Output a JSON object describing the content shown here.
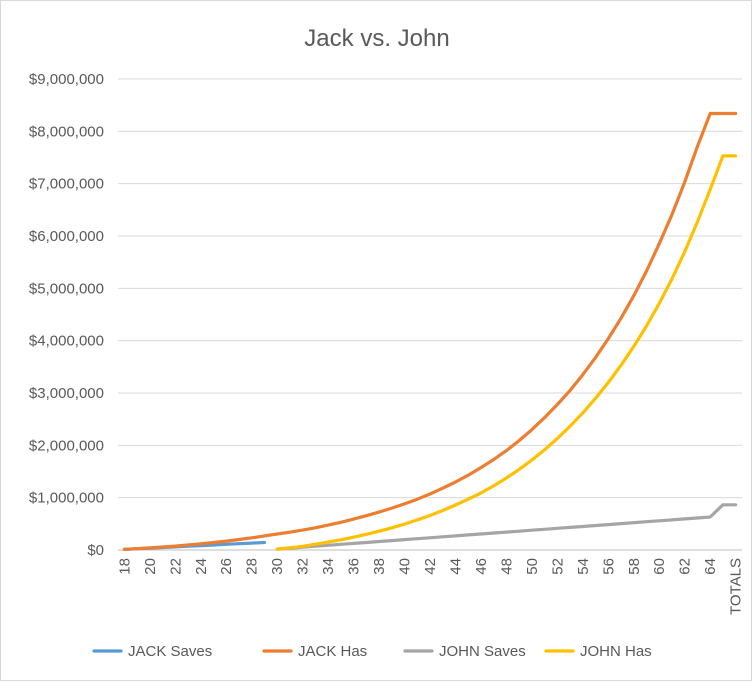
{
  "chart_data": {
    "type": "line",
    "title": "Jack vs. John",
    "xlabel": "",
    "ylabel": "",
    "ylim": [
      0,
      9000000
    ],
    "yticks": [
      "$0",
      "$1,000,000",
      "$2,000,000",
      "$3,000,000",
      "$4,000,000",
      "$5,000,000",
      "$6,000,000",
      "$7,000,000",
      "$8,000,000",
      "$9,000,000"
    ],
    "ytick_values": [
      0,
      1000000,
      2000000,
      3000000,
      4000000,
      5000000,
      6000000,
      7000000,
      8000000,
      9000000
    ],
    "categories": [
      "18",
      "19",
      "20",
      "21",
      "22",
      "23",
      "24",
      "25",
      "26",
      "27",
      "28",
      "29",
      "30",
      "31",
      "32",
      "33",
      "34",
      "35",
      "36",
      "37",
      "38",
      "39",
      "40",
      "41",
      "42",
      "43",
      "44",
      "45",
      "46",
      "47",
      "48",
      "49",
      "50",
      "51",
      "52",
      "53",
      "54",
      "55",
      "56",
      "57",
      "58",
      "59",
      "60",
      "61",
      "62",
      "63",
      "64",
      "65",
      "TOTALS"
    ],
    "xtick_labels": [
      "18",
      "20",
      "22",
      "24",
      "26",
      "28",
      "30",
      "32",
      "34",
      "36",
      "38",
      "40",
      "42",
      "44",
      "46",
      "48",
      "50",
      "52",
      "54",
      "56",
      "58",
      "60",
      "62",
      "64",
      "TOTALS"
    ],
    "grid": true,
    "legend_position": "bottom",
    "series": [
      {
        "name": "JACK Saves",
        "color": "#5B9BD5",
        "values": [
          12000,
          24000,
          36000,
          48000,
          60000,
          72000,
          84000,
          96000,
          108000,
          120000,
          132000,
          144000,
          null,
          null,
          null,
          null,
          null,
          null,
          null,
          null,
          null,
          null,
          null,
          null,
          null,
          null,
          null,
          null,
          null,
          null,
          null,
          null,
          null,
          null,
          null,
          null,
          null,
          null,
          null,
          null,
          null,
          null,
          null,
          null,
          null,
          null,
          null,
          null,
          null
        ]
      },
      {
        "name": "JACK Has",
        "color": "#ED7D31",
        "values": [
          12000,
          25000,
          40000,
          57000,
          75000,
          95000,
          118000,
          143000,
          170000,
          200000,
          233000,
          270000,
          305000,
          340000,
          380000,
          425000,
          475000,
          530000,
          590000,
          655000,
          725000,
          800000,
          880000,
          970000,
          1070000,
          1180000,
          1300000,
          1430000,
          1575000,
          1730000,
          1900000,
          2090000,
          2300000,
          2530000,
          2780000,
          3050000,
          3350000,
          3680000,
          4040000,
          4430000,
          4860000,
          5330000,
          5850000,
          6410000,
          7030000,
          7710000,
          8340000,
          8340000,
          8340000
        ]
      },
      {
        "name": "JOHN Saves",
        "color": "#A5A5A5",
        "values": [
          null,
          null,
          null,
          null,
          null,
          null,
          null,
          null,
          null,
          null,
          null,
          null,
          18000,
          36000,
          54000,
          72000,
          90000,
          108000,
          126000,
          144000,
          162000,
          180000,
          198000,
          216000,
          234000,
          252000,
          270000,
          288000,
          306000,
          324000,
          342000,
          360000,
          378000,
          396000,
          414000,
          432000,
          450000,
          468000,
          486000,
          504000,
          522000,
          540000,
          558000,
          576000,
          594000,
          612000,
          630000,
          864000,
          864000
        ]
      },
      {
        "name": "JOHN Has",
        "color": "#FFC000",
        "values": [
          null,
          null,
          null,
          null,
          null,
          null,
          null,
          null,
          null,
          null,
          null,
          null,
          18000,
          40000,
          70000,
          110000,
          150000,
          195000,
          245000,
          300000,
          360000,
          425000,
          495000,
          575000,
          660000,
          755000,
          860000,
          970000,
          1090000,
          1225000,
          1375000,
          1540000,
          1720000,
          1915000,
          2130000,
          2365000,
          2620000,
          2900000,
          3200000,
          3530000,
          3890000,
          4280000,
          4710000,
          5180000,
          5700000,
          6270000,
          6890000,
          7530000,
          7530000
        ]
      }
    ]
  }
}
